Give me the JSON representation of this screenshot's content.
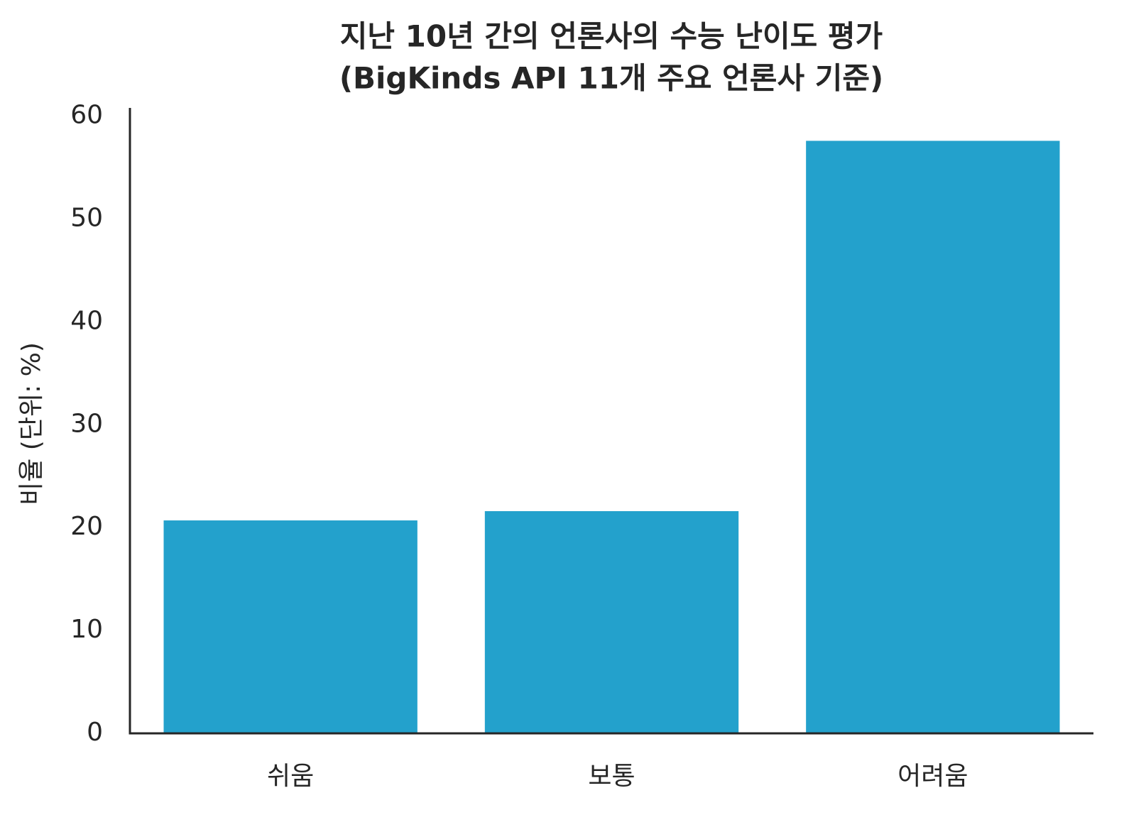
{
  "chart_data": {
    "type": "bar",
    "title": [
      "지난 10년 간의 언론사의 수능 난이도 평가",
      "(BigKinds API 11개 주요 언론사 기준)"
    ],
    "y_label": "비율 (단위: %)",
    "categories": [
      "쉬움",
      "보통",
      "어려움"
    ],
    "values": [
      20.7,
      21.6,
      57.6
    ],
    "color": "#23a1cc",
    "ylim": [
      0,
      60.8
    ],
    "yticks": [
      0,
      10,
      20,
      30,
      40,
      50,
      60
    ],
    "grid": false
  }
}
